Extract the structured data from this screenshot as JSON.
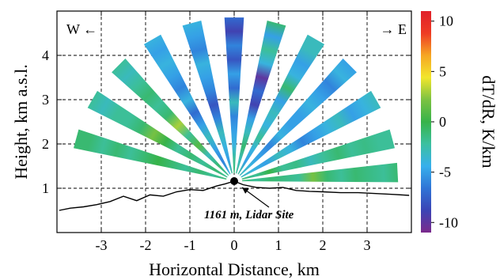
{
  "chart_data": {
    "type": "heatmap",
    "title": "",
    "xlabel": "Horizontal Distance, km",
    "ylabel": "Height, km a.s.l.",
    "colorbar_label": "dT/dR, K/km",
    "xlim": [
      -4,
      4
    ],
    "ylim": [
      0,
      5
    ],
    "x_ticks": [
      -3,
      -2,
      -1,
      0,
      1,
      2,
      3
    ],
    "x_tick_labels": [
      "-3",
      "-2",
      "-1",
      "0",
      "1",
      "2",
      "3"
    ],
    "y_ticks": [
      1,
      2,
      3,
      4
    ],
    "y_tick_labels": [
      "1",
      "2",
      "3",
      "4"
    ],
    "colorbar_range": [
      -11,
      11
    ],
    "colorbar_ticks": [
      10,
      5,
      0,
      -5,
      -10
    ],
    "colorbar_tick_labels": [
      "10",
      "5",
      "0",
      "-5",
      "-10"
    ],
    "colormap": [
      "#7b2a8c",
      "#3b44b5",
      "#2f74d6",
      "#37b0ec",
      "#3cc0a0",
      "#37b34a",
      "#7cc242",
      "#f2e62c",
      "#f6a623",
      "#ee3b24",
      "#e0202a"
    ],
    "grid": true,
    "lidar_site": {
      "x": 0.0,
      "height": 1.161
    },
    "annotations": {
      "west": "W ←",
      "east": "→ E",
      "site": "1161 m, Lidar Site"
    },
    "beam_range_km": [
      0.18,
      3.7
    ],
    "beams": [
      {
        "elevation_deg": 3,
        "values": [
          -1,
          -2,
          -1,
          -1.5,
          -2,
          2,
          -1,
          -2,
          -1,
          -1.5,
          -2,
          -1
        ]
      },
      {
        "elevation_deg": 15,
        "values": [
          -1,
          -2,
          0,
          -2,
          -1.5,
          -3,
          -2,
          -1,
          -2,
          -1.5,
          -2,
          -2
        ]
      },
      {
        "elevation_deg": 30,
        "values": [
          -3,
          -4,
          -5,
          -3,
          -4,
          -6,
          -5,
          -4,
          -3,
          -5,
          -4,
          -3
        ]
      },
      {
        "elevation_deg": 45,
        "values": [
          -3,
          -4,
          -5,
          -6,
          -4,
          -5,
          -5,
          -4,
          -5,
          -6,
          -4,
          -5
        ]
      },
      {
        "elevation_deg": 60,
        "values": [
          -2,
          -5,
          -4,
          -2,
          -4,
          -3,
          -5,
          -1,
          -4,
          -5,
          -3,
          -3
        ]
      },
      {
        "elevation_deg": 75,
        "values": [
          -2,
          -3,
          -1,
          -3,
          -5,
          -9,
          -7,
          -10,
          -4,
          -2,
          -5,
          -1
        ]
      },
      {
        "elevation_deg": 90,
        "values": [
          -1,
          -2,
          -4,
          -5,
          -6,
          -3,
          -7,
          -5,
          -8,
          -6,
          -9,
          -7
        ]
      },
      {
        "elevation_deg": 105,
        "values": [
          -2,
          -5,
          -4,
          -3,
          -6,
          -8,
          -6,
          -5,
          -4,
          -6,
          -5,
          -4
        ]
      },
      {
        "elevation_deg": 120,
        "values": [
          -4,
          -6,
          -5,
          -3,
          -5,
          -7,
          -4,
          -6,
          -5,
          -4,
          -5,
          -4
        ]
      },
      {
        "elevation_deg": 135,
        "values": [
          -2,
          -1,
          -3,
          1,
          -2,
          3,
          -1,
          -2,
          -1,
          -2,
          -3,
          -2
        ]
      },
      {
        "elevation_deg": 150,
        "values": [
          -2,
          -1,
          -2,
          -1,
          -2,
          0,
          2,
          -1,
          -2,
          -2,
          -3,
          -2
        ]
      },
      {
        "elevation_deg": 165,
        "values": [
          -1,
          -2,
          -1,
          -2,
          -1,
          0,
          -1,
          -2,
          -1,
          -2,
          -1,
          -1
        ]
      }
    ],
    "terrain": [
      {
        "x": -3.95,
        "h": 0.5
      },
      {
        "x": -3.7,
        "h": 0.55
      },
      {
        "x": -3.4,
        "h": 0.58
      },
      {
        "x": -3.1,
        "h": 0.63
      },
      {
        "x": -2.8,
        "h": 0.7
      },
      {
        "x": -2.5,
        "h": 0.82
      },
      {
        "x": -2.2,
        "h": 0.72
      },
      {
        "x": -1.9,
        "h": 0.85
      },
      {
        "x": -1.6,
        "h": 0.82
      },
      {
        "x": -1.3,
        "h": 0.92
      },
      {
        "x": -1.0,
        "h": 0.97
      },
      {
        "x": -0.7,
        "h": 0.95
      },
      {
        "x": -0.4,
        "h": 1.05
      },
      {
        "x": -0.2,
        "h": 1.1
      },
      {
        "x": 0.0,
        "h": 1.161
      },
      {
        "x": 0.2,
        "h": 1.08
      },
      {
        "x": 0.5,
        "h": 1.02
      },
      {
        "x": 0.8,
        "h": 1.0
      },
      {
        "x": 1.1,
        "h": 1.02
      },
      {
        "x": 1.4,
        "h": 0.95
      },
      {
        "x": 1.7,
        "h": 0.93
      },
      {
        "x": 2.0,
        "h": 0.92
      },
      {
        "x": 2.4,
        "h": 0.9
      },
      {
        "x": 2.8,
        "h": 0.9
      },
      {
        "x": 3.2,
        "h": 0.88
      },
      {
        "x": 3.6,
        "h": 0.86
      },
      {
        "x": 3.95,
        "h": 0.84
      }
    ]
  }
}
